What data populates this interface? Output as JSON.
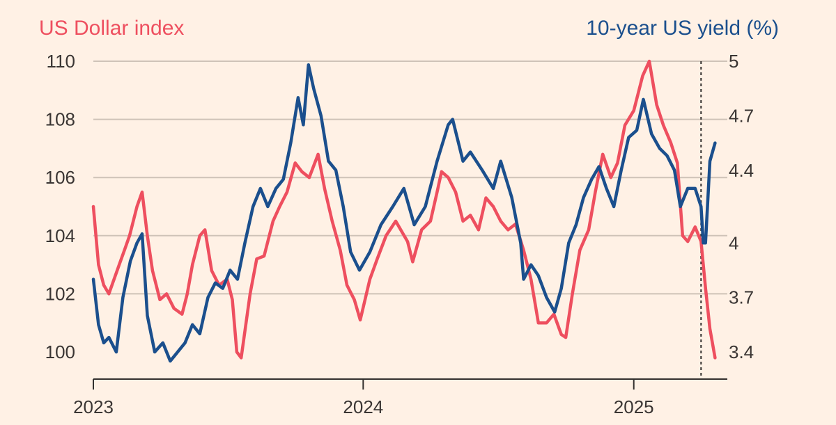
{
  "chart_data": {
    "type": "line",
    "left_axis_title": "US Dollar index",
    "right_axis_title": "10-year US yield (%)",
    "colors": {
      "dollar": "#EE4F5F",
      "yield": "#1B4F8D",
      "background": "#FFF1E5"
    },
    "x_range": [
      "2023-01-01",
      "2025-04-30"
    ],
    "x_ticks": [
      "2023",
      "2024",
      "2025"
    ],
    "y_left": {
      "range": [
        100,
        110
      ],
      "ticks": [
        "100",
        "102",
        "104",
        "106",
        "108",
        "110"
      ]
    },
    "y_right": {
      "range": [
        3.4,
        5.0
      ],
      "ticks": [
        "3.4",
        "3.7",
        "4",
        "4.4",
        "4.7",
        "5"
      ]
    },
    "marker_date": "2025-04-02",
    "grid": true,
    "series": [
      {
        "name": "US Dollar index",
        "axis": "left",
        "x": [
          "2023-01-01",
          "2023-01-08",
          "2023-01-15",
          "2023-01-22",
          "2023-01-29",
          "2023-02-05",
          "2023-02-12",
          "2023-02-19",
          "2023-03-01",
          "2023-03-08",
          "2023-03-15",
          "2023-03-22",
          "2023-04-01",
          "2023-04-10",
          "2023-04-20",
          "2023-05-01",
          "2023-05-08",
          "2023-05-15",
          "2023-05-25",
          "2023-06-01",
          "2023-06-10",
          "2023-06-20",
          "2023-07-01",
          "2023-07-08",
          "2023-07-14",
          "2023-07-20",
          "2023-08-01",
          "2023-08-10",
          "2023-08-20",
          "2023-09-01",
          "2023-09-10",
          "2023-09-20",
          "2023-10-01",
          "2023-10-10",
          "2023-10-20",
          "2023-11-01",
          "2023-11-10",
          "2023-11-20",
          "2023-12-01",
          "2023-12-10",
          "2023-12-20",
          "2023-12-28",
          "2024-01-10",
          "2024-01-20",
          "2024-02-01",
          "2024-02-14",
          "2024-03-01",
          "2024-03-08",
          "2024-03-20",
          "2024-04-01",
          "2024-04-10",
          "2024-04-16",
          "2024-04-25",
          "2024-05-05",
          "2024-05-15",
          "2024-05-25",
          "2024-06-05",
          "2024-06-15",
          "2024-06-25",
          "2024-07-05",
          "2024-07-15",
          "2024-07-25",
          "2024-08-05",
          "2024-08-15",
          "2024-08-25",
          "2024-09-05",
          "2024-09-15",
          "2024-09-25",
          "2024-10-01",
          "2024-10-10",
          "2024-10-20",
          "2024-11-01",
          "2024-11-10",
          "2024-11-20",
          "2024-12-01",
          "2024-12-10",
          "2024-12-20",
          "2025-01-01",
          "2025-01-13",
          "2025-01-22",
          "2025-02-01",
          "2025-02-10",
          "2025-02-20",
          "2025-03-01",
          "2025-03-08",
          "2025-03-15",
          "2025-03-25",
          "2025-04-02",
          "2025-04-08",
          "2025-04-14",
          "2025-04-21"
        ],
        "y": [
          105.0,
          103.0,
          102.3,
          102.0,
          102.5,
          103.0,
          103.5,
          104.0,
          105.0,
          105.5,
          104.0,
          102.8,
          101.8,
          102.0,
          101.5,
          101.3,
          102.0,
          103.0,
          104.0,
          104.2,
          102.8,
          102.3,
          102.5,
          101.8,
          100.0,
          99.8,
          102.0,
          103.2,
          103.3,
          104.5,
          105.0,
          105.5,
          106.5,
          106.2,
          106.0,
          106.8,
          105.6,
          104.5,
          103.5,
          102.3,
          101.8,
          101.1,
          102.5,
          103.2,
          104.0,
          104.5,
          103.8,
          103.1,
          104.2,
          104.5,
          105.5,
          106.2,
          106.0,
          105.5,
          104.5,
          104.7,
          104.2,
          105.3,
          105.0,
          104.5,
          104.2,
          104.4,
          103.5,
          102.5,
          101.0,
          101.0,
          101.3,
          100.6,
          100.5,
          102.0,
          103.5,
          104.2,
          105.5,
          106.8,
          106.0,
          106.5,
          107.8,
          108.3,
          109.5,
          110.0,
          108.5,
          107.8,
          107.2,
          106.5,
          104.0,
          103.8,
          104.3,
          103.8,
          102.2,
          100.8,
          99.8
        ]
      },
      {
        "name": "10-year US yield (%)",
        "axis": "right",
        "x": [
          "2023-01-01",
          "2023-01-08",
          "2023-01-15",
          "2023-01-22",
          "2023-02-01",
          "2023-02-10",
          "2023-02-20",
          "2023-03-01",
          "2023-03-08",
          "2023-03-15",
          "2023-03-25",
          "2023-04-05",
          "2023-04-15",
          "2023-04-25",
          "2023-05-05",
          "2023-05-15",
          "2023-05-25",
          "2023-06-05",
          "2023-06-15",
          "2023-06-25",
          "2023-07-05",
          "2023-07-15",
          "2023-07-25",
          "2023-08-05",
          "2023-08-15",
          "2023-08-25",
          "2023-09-05",
          "2023-09-15",
          "2023-09-25",
          "2023-10-05",
          "2023-10-12",
          "2023-10-19",
          "2023-10-26",
          "2023-11-05",
          "2023-11-15",
          "2023-11-25",
          "2023-12-05",
          "2023-12-15",
          "2023-12-27",
          "2024-01-10",
          "2024-01-25",
          "2024-02-10",
          "2024-02-25",
          "2024-03-10",
          "2024-03-25",
          "2024-04-10",
          "2024-04-25",
          "2024-05-01",
          "2024-05-15",
          "2024-05-25",
          "2024-06-10",
          "2024-06-25",
          "2024-07-05",
          "2024-07-20",
          "2024-08-01",
          "2024-08-05",
          "2024-08-15",
          "2024-08-25",
          "2024-09-05",
          "2024-09-16",
          "2024-09-25",
          "2024-10-05",
          "2024-10-15",
          "2024-10-25",
          "2024-11-05",
          "2024-11-15",
          "2024-11-25",
          "2024-12-05",
          "2024-12-15",
          "2024-12-25",
          "2025-01-05",
          "2025-01-14",
          "2025-01-25",
          "2025-02-05",
          "2025-02-15",
          "2025-02-25",
          "2025-03-05",
          "2025-03-15",
          "2025-03-25",
          "2025-04-02",
          "2025-04-05",
          "2025-04-08",
          "2025-04-14",
          "2025-04-21"
        ],
        "y": [
          3.8,
          3.55,
          3.45,
          3.48,
          3.4,
          3.7,
          3.9,
          4.0,
          4.05,
          3.6,
          3.4,
          3.45,
          3.35,
          3.4,
          3.45,
          3.55,
          3.5,
          3.7,
          3.78,
          3.75,
          3.85,
          3.8,
          4.0,
          4.2,
          4.3,
          4.2,
          4.3,
          4.35,
          4.55,
          4.8,
          4.65,
          4.98,
          4.85,
          4.7,
          4.45,
          4.4,
          4.2,
          3.95,
          3.85,
          3.95,
          4.1,
          4.2,
          4.3,
          4.1,
          4.2,
          4.45,
          4.65,
          4.68,
          4.45,
          4.5,
          4.4,
          4.3,
          4.45,
          4.25,
          4.0,
          3.8,
          3.88,
          3.82,
          3.7,
          3.62,
          3.75,
          4.0,
          4.1,
          4.25,
          4.35,
          4.42,
          4.3,
          4.2,
          4.4,
          4.58,
          4.62,
          4.79,
          4.6,
          4.52,
          4.48,
          4.4,
          4.2,
          4.3,
          4.3,
          4.2,
          4.0,
          4.0,
          4.45,
          4.55
        ]
      }
    ]
  }
}
